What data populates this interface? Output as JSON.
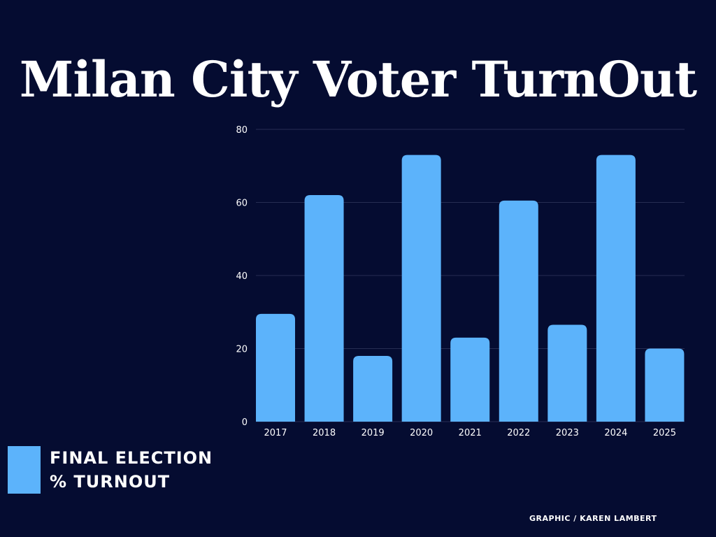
{
  "chart_data": {
    "type": "bar",
    "title": "Milan City Voter TurnOut",
    "categories": [
      "2017",
      "2018",
      "2019",
      "2020",
      "2021",
      "2022",
      "2023",
      "2024",
      "2025"
    ],
    "series": [
      {
        "name": "FINAL ELECTION % TURNOUT",
        "values": [
          29.5,
          62,
          18,
          73,
          23,
          60.5,
          26.5,
          73,
          20
        ]
      }
    ],
    "yticks": [
      "0",
      "20",
      "40",
      "60",
      "80"
    ],
    "ylim": [
      0,
      80
    ],
    "xlabel": "",
    "ylabel": "",
    "grid": true,
    "legend": {
      "placement": "bottom-left",
      "line1": "FINAL ELECTION",
      "line2": "% TURNOUT"
    },
    "bar_color": "#5cb3fb"
  },
  "credit": "GRAPHIC / KAREN LAMBERT"
}
